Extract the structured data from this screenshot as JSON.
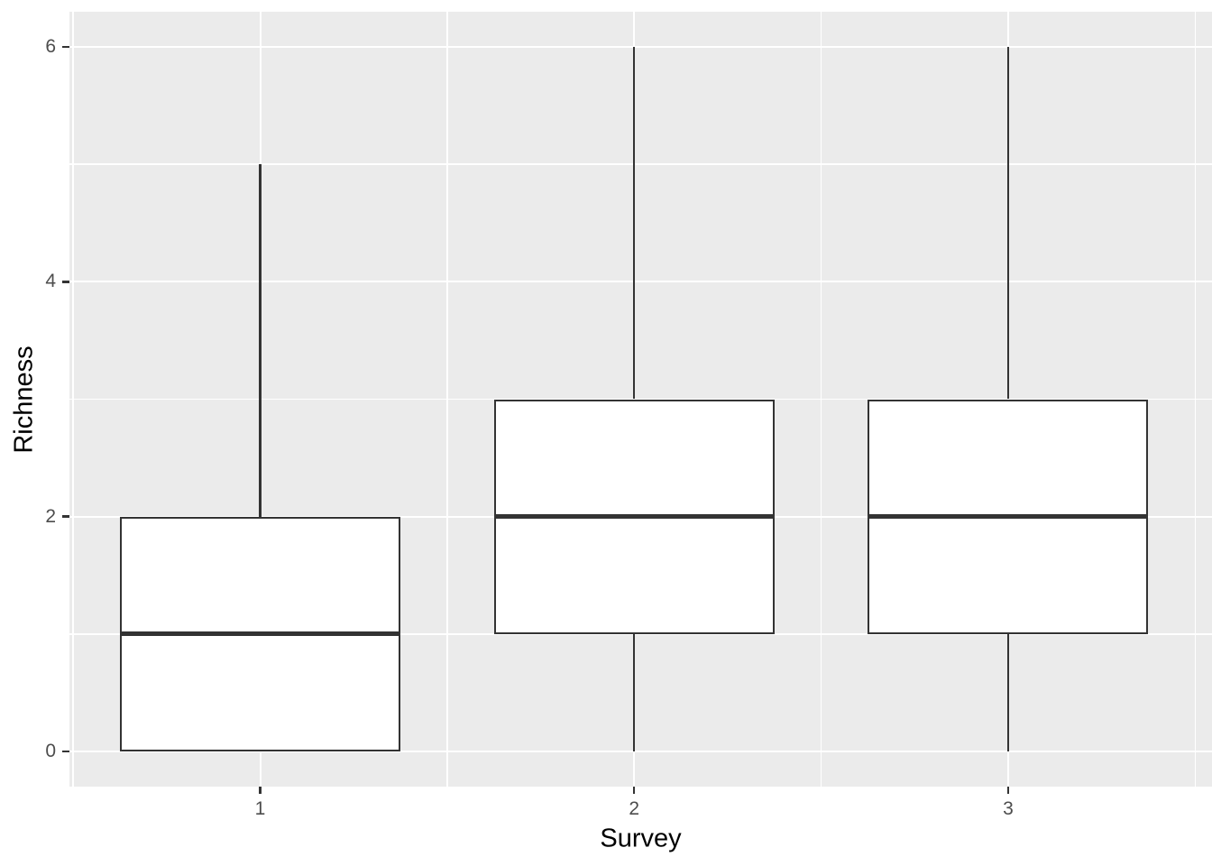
{
  "chart_data": {
    "type": "boxplot",
    "title": "",
    "xlabel": "Survey",
    "ylabel": "Richness",
    "categories": [
      "1",
      "2",
      "3"
    ],
    "y_ticks": [
      0,
      2,
      4,
      6
    ],
    "y_tick_labels": [
      "0",
      "2",
      "4",
      "6"
    ],
    "y_minor_gridlines": [
      1,
      3,
      5
    ],
    "x_minor_gridlines": [
      0.5,
      1.5,
      2.5,
      3.5
    ],
    "ylim": [
      -0.3,
      6.3
    ],
    "xlim": [
      0.49,
      3.545
    ],
    "grid": "major+minor white gridlines on grey panel",
    "legend": null,
    "box_width": 0.75,
    "series": [
      {
        "category": "1",
        "lower_whisker": 0,
        "q1": 0,
        "median": 1,
        "q3": 2,
        "upper_whisker": 5,
        "outliers": []
      },
      {
        "category": "2",
        "lower_whisker": 0,
        "q1": 1,
        "median": 2,
        "q3": 3,
        "upper_whisker": 6,
        "outliers": []
      },
      {
        "category": "3",
        "lower_whisker": 0,
        "q1": 1,
        "median": 2,
        "q3": 3,
        "upper_whisker": 6,
        "outliers": []
      }
    ],
    "colors": {
      "figure_background": "#FFFFFF",
      "panel_background": "#EBEBEB",
      "gridline": "#FFFFFF",
      "box_outline": "#333333",
      "box_fill": "#FFFFFF",
      "tick_label": "#4D4D4D",
      "tick_mark": "#333333",
      "axis_title": "#000000"
    }
  }
}
